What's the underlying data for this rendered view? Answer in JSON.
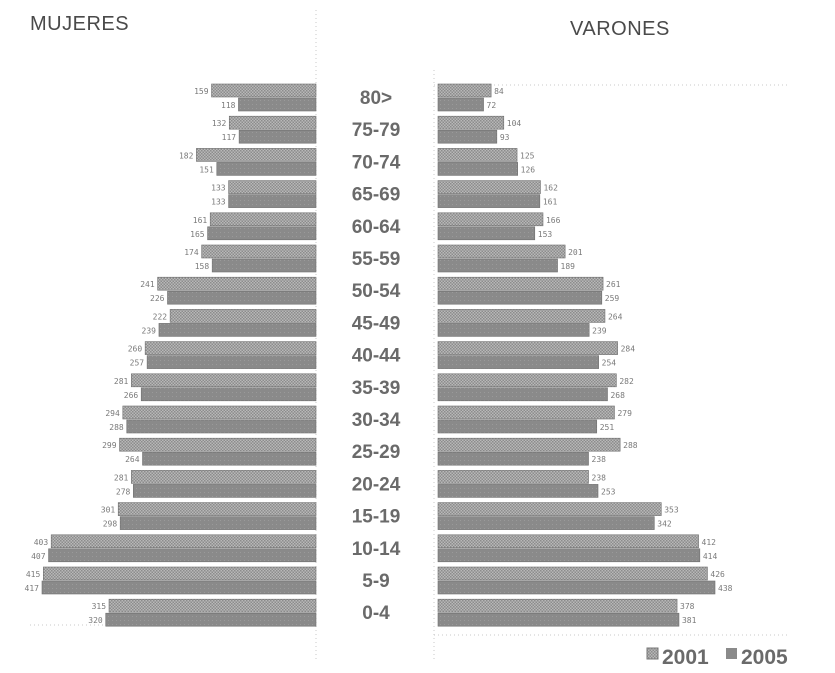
{
  "chart_data": {
    "type": "bar",
    "orientation": "horizontal-pyramid",
    "left_title": "MUJERES",
    "right_title": "VARONES",
    "categories": [
      "80>",
      "75-79",
      "70-74",
      "65-69",
      "60-64",
      "55-59",
      "50-54",
      "45-49",
      "40-44",
      "35-39",
      "30-34",
      "25-29",
      "20-24",
      "15-19",
      "10-14",
      "5-9",
      "0-4"
    ],
    "legend": [
      {
        "label": "2001",
        "color": "#9c9c9c",
        "pattern": "hatched"
      },
      {
        "label": "2005",
        "color": "#8a8a8a",
        "pattern": "solid"
      }
    ],
    "legend_position": "bottom-right",
    "series": {
      "mujeres": {
        "2001": [
          159,
          132,
          182,
          133,
          161,
          174,
          241,
          222,
          260,
          281,
          294,
          299,
          281,
          301,
          403,
          415,
          315
        ],
        "2005": [
          118,
          117,
          151,
          133,
          165,
          158,
          226,
          239,
          257,
          266,
          288,
          264,
          278,
          298,
          407,
          417,
          320
        ]
      },
      "varones": {
        "2001": [
          84,
          104,
          125,
          162,
          166,
          201,
          261,
          264,
          284,
          282,
          279,
          288,
          238,
          353,
          412,
          426,
          378
        ],
        "2005": [
          72,
          93,
          126,
          161,
          153,
          189,
          259,
          239,
          254,
          268,
          251,
          238,
          253,
          342,
          414,
          438,
          381
        ]
      }
    }
  }
}
